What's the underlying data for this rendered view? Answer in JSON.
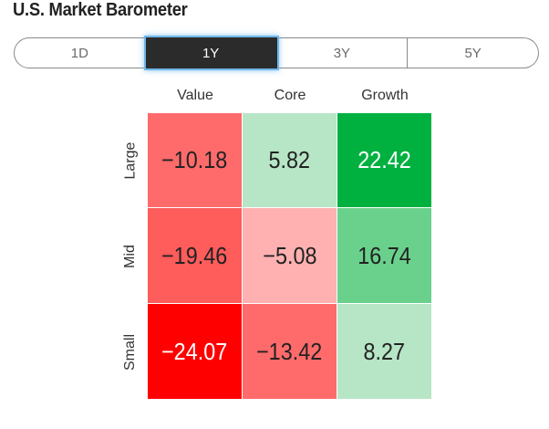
{
  "title": "U.S. Market Barometer",
  "tabs": [
    {
      "label": "1D",
      "active": false
    },
    {
      "label": "1Y",
      "active": true
    },
    {
      "label": "3Y",
      "active": false
    },
    {
      "label": "5Y",
      "active": false
    }
  ],
  "columns": [
    "Value",
    "Core",
    "Growth"
  ],
  "rows": [
    {
      "label": "Large",
      "cells": [
        {
          "value": "−10.18",
          "color": "#ff6b6b",
          "text_color": "#222222"
        },
        {
          "value": "5.82",
          "color": "#b7e6c7",
          "text_color": "#222222"
        },
        {
          "value": "22.42",
          "color": "#00b140",
          "text_color": "#ffffff"
        }
      ]
    },
    {
      "label": "Mid",
      "cells": [
        {
          "value": "−19.46",
          "color": "#ff5c5c",
          "text_color": "#222222"
        },
        {
          "value": "−5.08",
          "color": "#ffb1b1",
          "text_color": "#222222"
        },
        {
          "value": "16.74",
          "color": "#6ad18d",
          "text_color": "#222222"
        }
      ]
    },
    {
      "label": "Small",
      "cells": [
        {
          "value": "−24.07",
          "color": "#ff0000",
          "text_color": "#ffffff"
        },
        {
          "value": "−13.42",
          "color": "#ff6b6b",
          "text_color": "#222222"
        },
        {
          "value": "8.27",
          "color": "#b7e6c7",
          "text_color": "#222222"
        }
      ]
    }
  ]
}
